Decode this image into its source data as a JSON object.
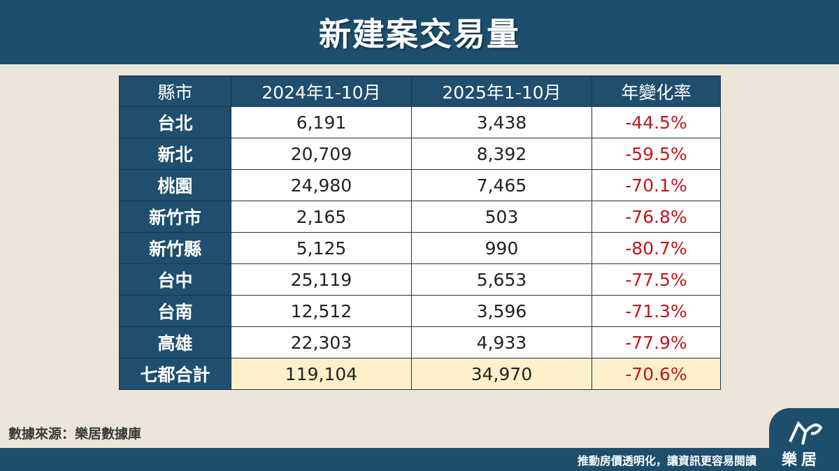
{
  "header": {
    "title": "新建案交易量"
  },
  "table": {
    "columns": [
      "縣市",
      "2024年1-10月",
      "2025年1-10月",
      "年變化率"
    ],
    "rows": [
      [
        "台北",
        "6,191",
        "3,438",
        "-44.5%"
      ],
      [
        "新北",
        "20,709",
        "8,392",
        "-59.5%"
      ],
      [
        "桃園",
        "24,980",
        "7,465",
        "-70.1%"
      ],
      [
        "新竹市",
        "2,165",
        "503",
        "-76.8%"
      ],
      [
        "新竹縣",
        "5,125",
        "990",
        "-80.7%"
      ],
      [
        "台中",
        "25,119",
        "5,653",
        "-77.5%"
      ],
      [
        "台南",
        "12,512",
        "3,596",
        "-71.3%"
      ],
      [
        "高雄",
        "22,303",
        "4,933",
        "-77.9%"
      ],
      [
        "七都合計",
        "119,104",
        "34,970",
        "-70.6%"
      ]
    ]
  },
  "source": "數據來源：樂居數據庫",
  "footer": {
    "tagline": "推動房價透明化，讓資訊更容易閱讀",
    "logo": "樂居"
  }
}
